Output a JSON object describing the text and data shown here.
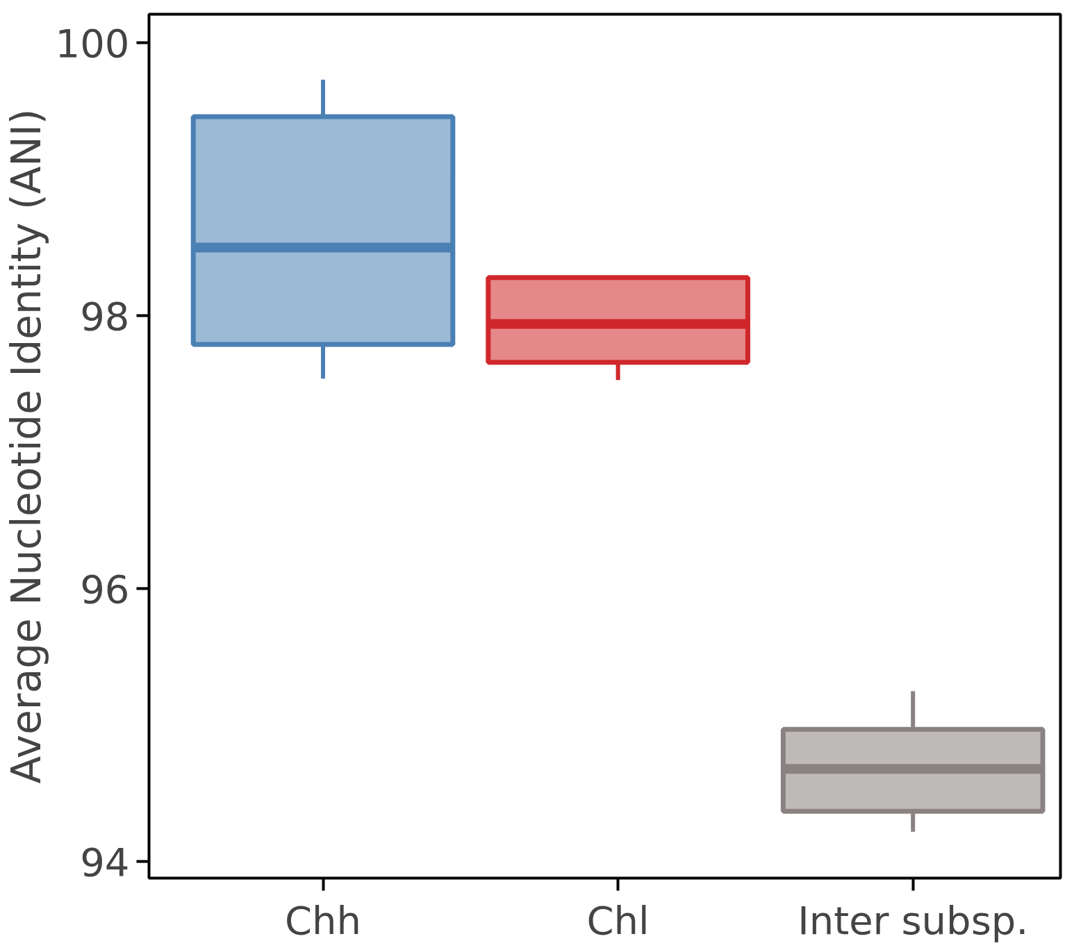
{
  "chart_data": {
    "type": "box",
    "ylabel": "Average Nucleotide Identity (ANI)",
    "categories": [
      "Chh",
      "Chl",
      "Inter subsp."
    ],
    "boxes": [
      {
        "low": 97.54,
        "q1": 97.79,
        "median": 98.5,
        "q3": 99.46,
        "high": 99.73
      },
      {
        "low": 97.53,
        "q1": 97.66,
        "median": 97.94,
        "q3": 98.28,
        "high": 98.28
      },
      {
        "low": 94.22,
        "q1": 94.37,
        "median": 94.68,
        "q3": 94.97,
        "high": 95.25
      }
    ],
    "colors": [
      "#4a80b4",
      "#d0272a",
      "#8a8282"
    ],
    "ylim": [
      93.88,
      100.21
    ],
    "yticks": [
      94,
      96,
      98,
      100
    ],
    "grid": false
  }
}
